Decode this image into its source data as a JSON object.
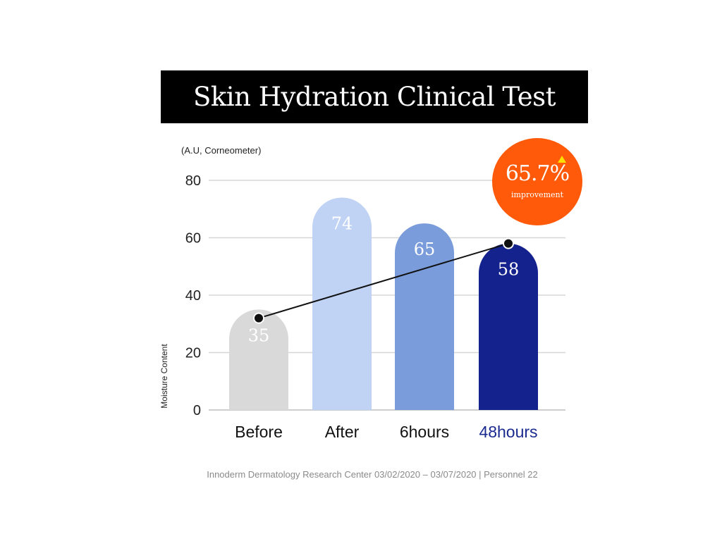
{
  "title": "Skin Hydration Clinical Test",
  "unit_label": "(A.U, Corneometer)",
  "badge": {
    "value": "65.7%",
    "label": "improvement",
    "color": "#ff5a0a",
    "arrow_icon": "triangle-up-icon"
  },
  "footer": "Innoderm Dermatology Research Center 03/02/2020 – 03/07/2020 | Personnel 22",
  "chart_data": {
    "type": "bar",
    "title": "Skin Hydration Clinical Test",
    "xlabel": "",
    "ylabel": "Moisture Content",
    "unit": "(A.U, Corneometer)",
    "ylim": [
      0,
      80
    ],
    "yticks": [
      0,
      20,
      40,
      60,
      80
    ],
    "grid": true,
    "categories": [
      "Before",
      "After",
      "6hours",
      "48hours"
    ],
    "values": [
      35,
      74,
      65,
      58
    ],
    "bar_colors": [
      "#d9d9d9",
      "#c0d3f5",
      "#7a9cdb",
      "#13228c"
    ],
    "category_label_colors": [
      "#111111",
      "#111111",
      "#111111",
      "#1a2a8f"
    ],
    "data_labels": [
      "35",
      "74",
      "65",
      "58"
    ],
    "trend_line": {
      "from_category": "Before",
      "to_category": "48hours",
      "from_value": 32,
      "to_value": 58
    }
  }
}
